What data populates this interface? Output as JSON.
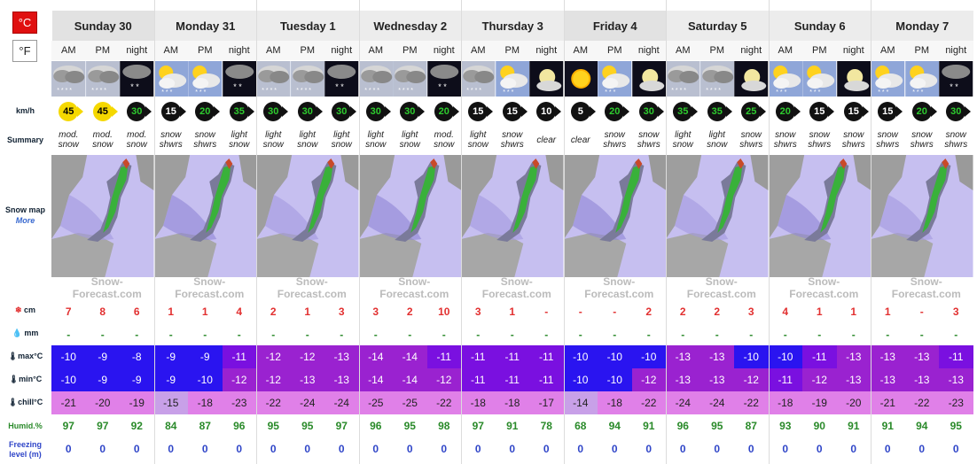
{
  "units": {
    "celsius": "°C",
    "fahrenheit": "°F"
  },
  "row_labels": {
    "wind": "km/h",
    "summary": "Summary",
    "snow_map": "Snow map",
    "more": "More",
    "snow": "cm",
    "rain": "mm",
    "max": "max°C",
    "min": "min°C",
    "chill": "chill°C",
    "humid": "Humid.%",
    "freezing": "Freezing level (m)"
  },
  "logo_text": "Snow-Forecast.com",
  "days": [
    {
      "name": "Sunday 30",
      "weekend": true
    },
    {
      "name": "Monday 31",
      "weekend": false
    },
    {
      "name": "Tuesday 1",
      "weekend": false
    },
    {
      "name": "Wednesday 2",
      "weekend": false
    },
    {
      "name": "Thursday 3",
      "weekend": false
    },
    {
      "name": "Friday 4",
      "weekend": true
    },
    {
      "name": "Saturday 5",
      "weekend": false
    },
    {
      "name": "Sunday 6",
      "weekend": false
    },
    {
      "name": "Monday 7",
      "weekend": false
    }
  ],
  "periods": [
    "AM",
    "PM",
    "night"
  ],
  "weather_icons": [
    "snow-cloud",
    "snow-cloud",
    "night-snow",
    "sun-cloud",
    "sun-cloud",
    "night-snow",
    "snow-cloud",
    "snow-cloud",
    "night-snow",
    "snow-cloud",
    "snow-cloud",
    "night-snow",
    "snow-cloud",
    "sun-cloud",
    "night-moon",
    "sun",
    "sun-cloud",
    "night-moon",
    "snow-cloud",
    "snow-cloud",
    "night-moon",
    "sun-cloud",
    "sun-cloud",
    "night-moon",
    "sun-cloud",
    "sun-cloud",
    "night-snow"
  ],
  "wind": [
    {
      "v": "45",
      "bg": "#f5d800",
      "fg": "#000"
    },
    {
      "v": "45",
      "bg": "#f5d800",
      "fg": "#000"
    },
    {
      "v": "30",
      "bg": "#111",
      "fg": "#2ecc2e"
    },
    {
      "v": "15",
      "bg": "#111",
      "fg": "#fff"
    },
    {
      "v": "20",
      "bg": "#111",
      "fg": "#2ecc2e"
    },
    {
      "v": "35",
      "bg": "#111",
      "fg": "#2ecc2e"
    },
    {
      "v": "30",
      "bg": "#111",
      "fg": "#2ecc2e"
    },
    {
      "v": "30",
      "bg": "#111",
      "fg": "#2ecc2e"
    },
    {
      "v": "30",
      "bg": "#111",
      "fg": "#2ecc2e"
    },
    {
      "v": "30",
      "bg": "#111",
      "fg": "#2ecc2e"
    },
    {
      "v": "30",
      "bg": "#111",
      "fg": "#2ecc2e"
    },
    {
      "v": "20",
      "bg": "#111",
      "fg": "#2ecc2e"
    },
    {
      "v": "15",
      "bg": "#111",
      "fg": "#fff"
    },
    {
      "v": "15",
      "bg": "#111",
      "fg": "#fff"
    },
    {
      "v": "10",
      "bg": "#111",
      "fg": "#fff"
    },
    {
      "v": "5",
      "bg": "#111",
      "fg": "#fff"
    },
    {
      "v": "20",
      "bg": "#111",
      "fg": "#2ecc2e"
    },
    {
      "v": "30",
      "bg": "#111",
      "fg": "#2ecc2e"
    },
    {
      "v": "35",
      "bg": "#111",
      "fg": "#2ecc2e"
    },
    {
      "v": "35",
      "bg": "#111",
      "fg": "#2ecc2e"
    },
    {
      "v": "25",
      "bg": "#111",
      "fg": "#2ecc2e"
    },
    {
      "v": "20",
      "bg": "#111",
      "fg": "#2ecc2e"
    },
    {
      "v": "15",
      "bg": "#111",
      "fg": "#fff"
    },
    {
      "v": "15",
      "bg": "#111",
      "fg": "#fff"
    },
    {
      "v": "15",
      "bg": "#111",
      "fg": "#fff"
    },
    {
      "v": "20",
      "bg": "#111",
      "fg": "#2ecc2e"
    },
    {
      "v": "30",
      "bg": "#111",
      "fg": "#2ecc2e"
    }
  ],
  "summary": [
    [
      "mod.",
      "snow"
    ],
    [
      "mod.",
      "snow"
    ],
    [
      "mod.",
      "snow"
    ],
    [
      "snow",
      "shwrs"
    ],
    [
      "snow",
      "shwrs"
    ],
    [
      "light",
      "snow"
    ],
    [
      "light",
      "snow"
    ],
    [
      "light",
      "snow"
    ],
    [
      "light",
      "snow"
    ],
    [
      "light",
      "snow"
    ],
    [
      "light",
      "snow"
    ],
    [
      "mod.",
      "snow"
    ],
    [
      "light",
      "snow"
    ],
    [
      "snow",
      "shwrs"
    ],
    [
      "clear",
      ""
    ],
    [
      "clear",
      ""
    ],
    [
      "snow",
      "shwrs"
    ],
    [
      "snow",
      "shwrs"
    ],
    [
      "light",
      "snow"
    ],
    [
      "light",
      "snow"
    ],
    [
      "snow",
      "shwrs"
    ],
    [
      "snow",
      "shwrs"
    ],
    [
      "snow",
      "shwrs"
    ],
    [
      "snow",
      "shwrs"
    ],
    [
      "snow",
      "shwrs"
    ],
    [
      "snow",
      "shwrs"
    ],
    [
      "snow",
      "shwrs"
    ]
  ],
  "snow_cm": [
    "7",
    "8",
    "6",
    "1",
    "1",
    "4",
    "2",
    "1",
    "3",
    "3",
    "2",
    "10",
    "3",
    "1",
    "-",
    "-",
    "-",
    "2",
    "2",
    "2",
    "3",
    "4",
    "1",
    "1",
    "1",
    "-",
    "3"
  ],
  "rain_mm": [
    "-",
    "-",
    "-",
    "-",
    "-",
    "-",
    "-",
    "-",
    "-",
    "-",
    "-",
    "-",
    "-",
    "-",
    "-",
    "-",
    "-",
    "-",
    "-",
    "-",
    "-",
    "-",
    "-",
    "-",
    "-",
    "-",
    "-"
  ],
  "max_c": [
    "-10",
    "-9",
    "-8",
    "-9",
    "-9",
    "-11",
    "-12",
    "-12",
    "-13",
    "-14",
    "-14",
    "-11",
    "-11",
    "-11",
    "-11",
    "-10",
    "-10",
    "-10",
    "-13",
    "-13",
    "-10",
    "-10",
    "-11",
    "-13",
    "-13",
    "-13",
    "-11"
  ],
  "min_c": [
    "-10",
    "-9",
    "-9",
    "-9",
    "-10",
    "-12",
    "-12",
    "-13",
    "-13",
    "-14",
    "-14",
    "-12",
    "-11",
    "-11",
    "-11",
    "-10",
    "-10",
    "-12",
    "-13",
    "-13",
    "-12",
    "-11",
    "-12",
    "-13",
    "-13",
    "-13",
    "-13"
  ],
  "chill_c": [
    "-21",
    "-20",
    "-19",
    "-15",
    "-18",
    "-23",
    "-22",
    "-24",
    "-24",
    "-25",
    "-25",
    "-22",
    "-18",
    "-18",
    "-17",
    "-14",
    "-18",
    "-22",
    "-24",
    "-24",
    "-22",
    "-18",
    "-19",
    "-20",
    "-21",
    "-22",
    "-23"
  ],
  "humid": [
    "97",
    "97",
    "92",
    "84",
    "87",
    "96",
    "95",
    "95",
    "97",
    "96",
    "95",
    "98",
    "97",
    "91",
    "78",
    "68",
    "94",
    "91",
    "96",
    "95",
    "87",
    "93",
    "90",
    "91",
    "91",
    "94",
    "95"
  ],
  "freezing": [
    "0",
    "0",
    "0",
    "0",
    "0",
    "0",
    "0",
    "0",
    "0",
    "0",
    "0",
    "0",
    "0",
    "0",
    "0",
    "0",
    "0",
    "0",
    "0",
    "0",
    "0",
    "0",
    "0",
    "0",
    "0",
    "0",
    "0"
  ],
  "colors": {
    "celsius_active": "#e01010",
    "blue_deep": "#2a14f0",
    "violet": "#7a10e0",
    "purple": "#9a22d0",
    "pink_chill": "#e080e8",
    "pink_light": "#c8a0e8"
  }
}
